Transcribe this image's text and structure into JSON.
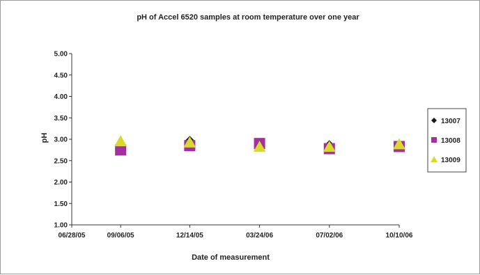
{
  "chart_data": {
    "type": "scatter",
    "title": "pH of Accel 6520 samples at room temperature over one year",
    "xlabel": "Date of measurement",
    "ylabel": "pH",
    "ylim": [
      1.0,
      5.0
    ],
    "y_ticks": [
      "1.00",
      "1.50",
      "2.00",
      "2.50",
      "3.00",
      "3.50",
      "4.00",
      "4.50",
      "5.00"
    ],
    "x_ticks": [
      "06/28/05",
      "09/06/05",
      "12/14/05",
      "03/24/06",
      "07/02/06",
      "10/10/06"
    ],
    "x_tick_values": [
      0,
      70,
      169,
      269,
      369,
      469
    ],
    "grid": false,
    "legend_position": "right",
    "series": [
      {
        "name": "13007",
        "marker": "diamond",
        "color": "#1a1a1a",
        "points": [
          {
            "x": 169,
            "y": 2.95
          },
          {
            "x": 269,
            "y": 2.9
          },
          {
            "x": 369,
            "y": 2.85
          },
          {
            "x": 469,
            "y": 2.85
          }
        ]
      },
      {
        "name": "13008",
        "marker": "square",
        "color": "#a0329a",
        "points": [
          {
            "x": 70,
            "y": 2.75
          },
          {
            "x": 169,
            "y": 2.85
          },
          {
            "x": 269,
            "y": 2.9
          },
          {
            "x": 369,
            "y": 2.78
          },
          {
            "x": 469,
            "y": 2.83
          }
        ]
      },
      {
        "name": "13009",
        "marker": "triangle",
        "color": "#d7dc2a",
        "points": [
          {
            "x": 70,
            "y": 2.95
          },
          {
            "x": 169,
            "y": 2.92
          },
          {
            "x": 269,
            "y": 2.82
          },
          {
            "x": 369,
            "y": 2.82
          },
          {
            "x": 469,
            "y": 2.88
          }
        ]
      }
    ]
  }
}
